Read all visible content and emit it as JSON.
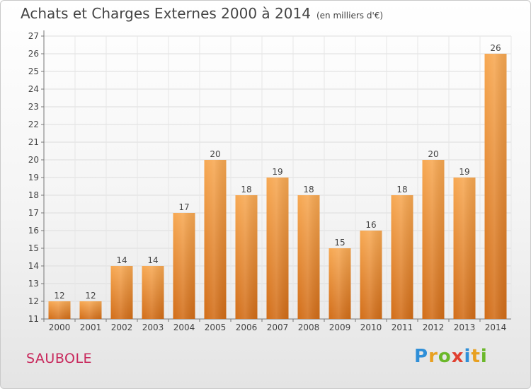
{
  "header": {
    "title": "Achats et Charges Externes 2000 à 2014",
    "subtitle": "(en milliers d'€)"
  },
  "footer": {
    "commune": "SAUBOLE",
    "logo_letters": [
      "P",
      "r",
      "o",
      "x",
      "i",
      "t",
      "i"
    ],
    "logo_colors": [
      "#2f8fd8",
      "#e8a020",
      "#6bb82a",
      "#e04030",
      "#2f8fd8",
      "#e8a020",
      "#6bb82a"
    ]
  },
  "chart_data": {
    "type": "bar",
    "categories": [
      "2000",
      "2001",
      "2002",
      "2003",
      "2004",
      "2005",
      "2006",
      "2007",
      "2008",
      "2009",
      "2010",
      "2011",
      "2012",
      "2013",
      "2014"
    ],
    "values": [
      12,
      12,
      14,
      14,
      17,
      20,
      18,
      19,
      18,
      15,
      16,
      18,
      20,
      19,
      26
    ],
    "title": "Achats et Charges Externes 2000 à 2014",
    "subtitle": "(en milliers d'€)",
    "ylim": [
      11,
      27
    ],
    "yticks": [
      11,
      12,
      13,
      14,
      15,
      16,
      17,
      18,
      19,
      20,
      21,
      22,
      23,
      24,
      25,
      26,
      27
    ],
    "grid": true,
    "bar_color_top": "#f7a852",
    "bar_color_bottom": "#d26d18"
  }
}
